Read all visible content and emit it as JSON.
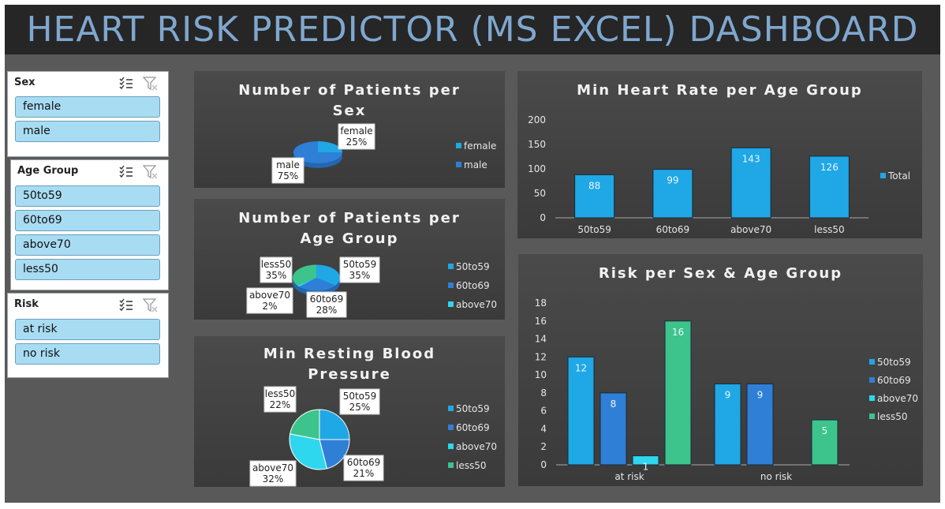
{
  "header": {
    "title": "HEART RISK PREDICTOR (MS EXCEL) DASHBOARD"
  },
  "slicers": [
    {
      "title": "Sex",
      "items": [
        "female",
        "male"
      ]
    },
    {
      "title": "Age Group",
      "items": [
        "50to59",
        "60to69",
        "above70",
        "less50"
      ]
    },
    {
      "title": "Risk",
      "items": [
        "at risk",
        "no risk"
      ]
    }
  ],
  "colors": {
    "c1": "#1fa7e6",
    "c2": "#2f7fd6",
    "c3": "#2fd7ee",
    "c4": "#3cc48c",
    "bg": "#3f3f3f"
  },
  "chart_data": [
    {
      "id": "sex-pie",
      "type": "pie",
      "title": "Number of Patients per Sex",
      "categories": [
        "female",
        "male"
      ],
      "values": [
        25,
        75
      ],
      "unit": "%",
      "legend": [
        "female",
        "male"
      ],
      "legend_position": "right"
    },
    {
      "id": "age-pie",
      "type": "pie",
      "title": "Number of Patients per Age Group",
      "categories": [
        "50to59",
        "60to69",
        "above70",
        "less50"
      ],
      "values": [
        35,
        28,
        2,
        35
      ],
      "unit": "%",
      "legend": [
        "50to59",
        "60to69",
        "above70"
      ],
      "legend_position": "right"
    },
    {
      "id": "bp-pie",
      "type": "pie",
      "title": "Min Resting Blood Pressure",
      "categories": [
        "50to59",
        "60to69",
        "above70",
        "less50"
      ],
      "values": [
        25,
        21,
        32,
        22
      ],
      "unit": "%",
      "legend": [
        "50to59",
        "60to69",
        "above70",
        "less50"
      ],
      "legend_position": "right"
    },
    {
      "id": "hr-bar",
      "type": "bar",
      "title": "Min Heart Rate per Age Group",
      "categories": [
        "50to59",
        "60to69",
        "above70",
        "less50"
      ],
      "series": [
        {
          "name": "Total",
          "values": [
            88,
            99,
            143,
            126
          ]
        }
      ],
      "ylim": [
        0,
        200
      ],
      "yticks": [
        0,
        50,
        100,
        150,
        200
      ],
      "legend_position": "right",
      "grid": false
    },
    {
      "id": "risk-bar",
      "type": "bar",
      "title": "Risk per Sex & Age Group",
      "categories": [
        "at risk",
        "no risk"
      ],
      "series": [
        {
          "name": "50to59",
          "values": [
            12,
            9
          ]
        },
        {
          "name": "60to69",
          "values": [
            8,
            9
          ]
        },
        {
          "name": "above70",
          "values": [
            1,
            null
          ]
        },
        {
          "name": "less50",
          "values": [
            16,
            5
          ]
        }
      ],
      "ylim": [
        0,
        18
      ],
      "yticks": [
        0,
        2,
        4,
        6,
        8,
        10,
        12,
        14,
        16,
        18
      ],
      "legend_position": "right",
      "grid": false
    }
  ]
}
